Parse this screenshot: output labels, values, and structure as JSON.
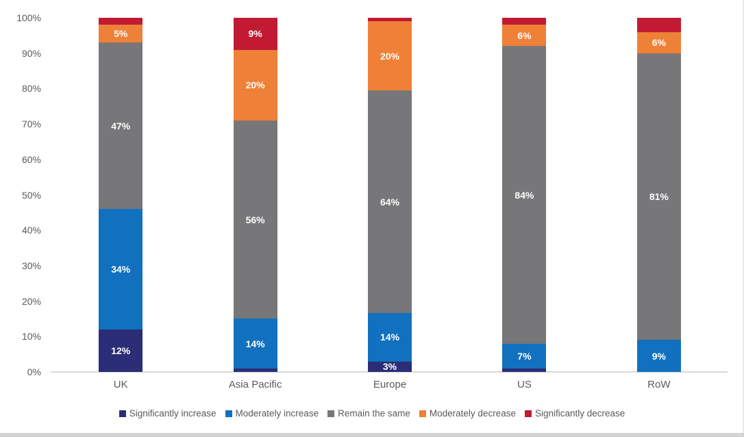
{
  "chart_data": {
    "type": "bar",
    "stacked": true,
    "stacked_100_percent": true,
    "title": "",
    "xlabel": "",
    "ylabel": "",
    "ylim": [
      0,
      100
    ],
    "grid": false,
    "legend_position": "bottom",
    "background_color": "#ffffff",
    "axis_text_color": "#595959",
    "baseline_color": "#d9d9d9",
    "y_ticks": [
      "0%",
      "10%",
      "20%",
      "30%",
      "40%",
      "50%",
      "60%",
      "70%",
      "80%",
      "90%",
      "100%"
    ],
    "categories": [
      "UK",
      "Asia Pacific",
      "Europe",
      "US",
      "RoW"
    ],
    "series": [
      {
        "name": "Significantly increase",
        "color": "#2b2d76",
        "values": [
          12,
          1,
          3,
          1,
          0
        ],
        "labels": [
          "12%",
          null,
          "3%",
          null,
          null
        ]
      },
      {
        "name": "Moderately increase",
        "color": "#1171be",
        "values": [
          34,
          14,
          14,
          7,
          9
        ],
        "labels": [
          "34%",
          "14%",
          "14%",
          "7%",
          "9%"
        ]
      },
      {
        "name": "Remain the same",
        "color": "#777679",
        "values": [
          47,
          56,
          64,
          84,
          81
        ],
        "labels": [
          "47%",
          "56%",
          "64%",
          "84%",
          "81%"
        ]
      },
      {
        "name": "Moderately decrease",
        "color": "#ef8038",
        "values": [
          5,
          20,
          20,
          6,
          6
        ],
        "labels": [
          "5%",
          "20%",
          "20%",
          "6%",
          "6%"
        ]
      },
      {
        "name": "Significantly decrease",
        "color": "#c11a32",
        "values": [
          2,
          9,
          1,
          2,
          4
        ],
        "labels": [
          null,
          "9%",
          null,
          null,
          null
        ]
      }
    ]
  }
}
